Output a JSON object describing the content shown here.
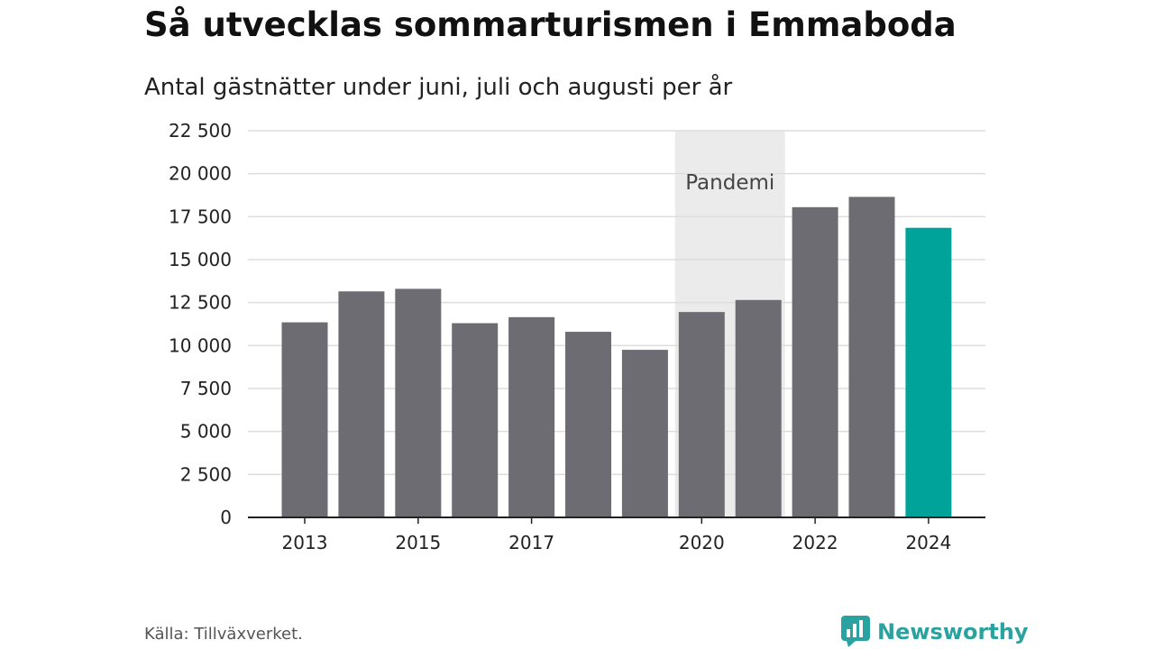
{
  "title": "Så utvecklas sommarturismen i Emmaboda",
  "subtitle": "Antal gästnätter under juni, juli och augusti per år",
  "source": "Källa: Tillväxverket.",
  "brand": {
    "name": "Newsworthy",
    "icon": "newsworthy-logo-icon",
    "color": "#2aa3a0"
  },
  "colors": {
    "bar": "#6d6c72",
    "highlight": "#00a39a",
    "shade": "#ebebeb",
    "grid": "#dddddd",
    "axis": "#222222"
  },
  "chart_data": {
    "type": "bar",
    "categories": [
      "2013",
      "2014",
      "2015",
      "2016",
      "2017",
      "2018",
      "2019",
      "2020",
      "2021",
      "2022",
      "2023",
      "2024"
    ],
    "tick_labels": [
      "2013",
      "",
      "2015",
      "",
      "2017",
      "",
      "",
      "2020",
      "",
      "2022",
      "",
      "2024"
    ],
    "values": [
      11350,
      13150,
      13300,
      11300,
      11650,
      10800,
      9750,
      11950,
      12650,
      18050,
      18650,
      16850
    ],
    "highlight_category": "2024",
    "ylim": [
      0,
      22500
    ],
    "yticks": [
      0,
      2500,
      5000,
      7500,
      10000,
      12500,
      15000,
      17500,
      20000,
      22500
    ],
    "ytick_labels": [
      "0",
      "2 500",
      "5 000",
      "7 500",
      "10 000",
      "12 500",
      "15 000",
      "17 500",
      "20 000",
      "22 500"
    ],
    "grid": true,
    "annotation": {
      "label": "Pandemi",
      "from": "2020",
      "to": "2021"
    },
    "xlabel": "",
    "ylabel": ""
  }
}
